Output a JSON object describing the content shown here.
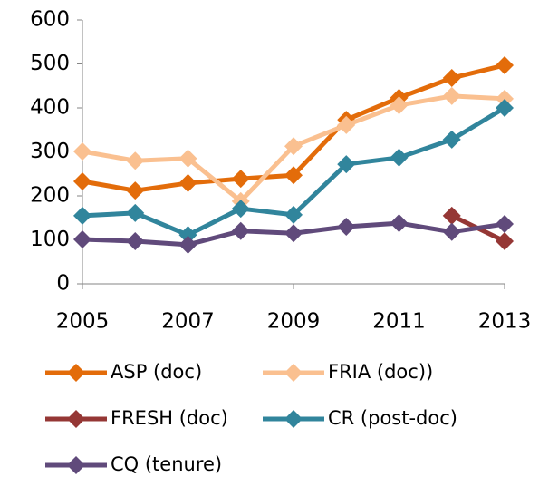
{
  "chart_data": {
    "type": "line",
    "x": [
      2005,
      2006,
      2007,
      2008,
      2009,
      2010,
      2011,
      2012,
      2013
    ],
    "xlim": [
      2005,
      2013
    ],
    "xticks": [
      2005,
      2007,
      2009,
      2011,
      2013
    ],
    "ylim": [
      0,
      600
    ],
    "yticks": [
      0,
      100,
      200,
      300,
      400,
      500,
      600
    ],
    "grid": false,
    "legend": "bottom",
    "series": [
      {
        "name": "ASP (doc)",
        "color": "#e36c0a",
        "values": [
          233,
          212,
          229,
          239,
          247,
          373,
          423,
          468,
          497
        ]
      },
      {
        "name": "FRIA (doc))",
        "color": "#fac090",
        "values": [
          301,
          280,
          285,
          188,
          313,
          361,
          406,
          427,
          421
        ]
      },
      {
        "name": "FRESH (doc)",
        "color": "#953735",
        "values": [
          null,
          null,
          null,
          null,
          null,
          null,
          null,
          155,
          97
        ]
      },
      {
        "name": "CR (post-doc)",
        "color": "#31859c",
        "values": [
          155,
          161,
          111,
          171,
          157,
          272,
          287,
          328,
          400
        ]
      },
      {
        "name": "CQ (tenure)",
        "color": "#604a7b",
        "values": [
          101,
          97,
          89,
          120,
          115,
          130,
          138,
          118,
          136
        ]
      }
    ]
  }
}
